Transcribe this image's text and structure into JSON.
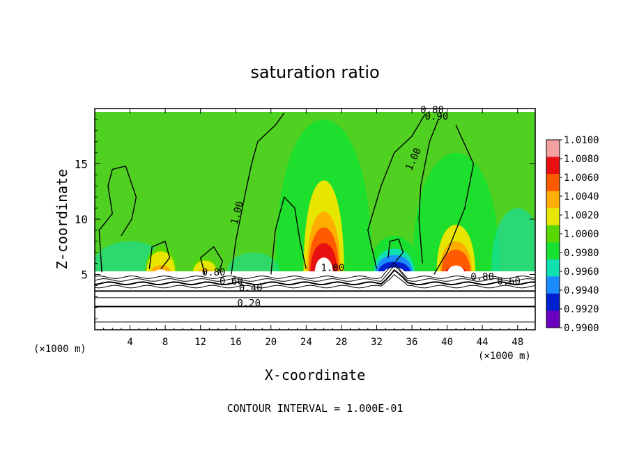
{
  "chart_data": {
    "type": "heatmap",
    "title": "saturation ratio",
    "xlabel": "X-coordinate",
    "ylabel": "Z-coordinate",
    "x_unit_left": "(×1000 m)",
    "x_unit_right": "(×1000 m)",
    "xlim": [
      0,
      50
    ],
    "ylim": [
      0,
      20
    ],
    "x_ticks": [
      4,
      8,
      12,
      16,
      20,
      24,
      28,
      32,
      36,
      40,
      44,
      48
    ],
    "y_ticks": [
      5,
      10,
      15
    ],
    "footer": "CONTOUR INTERVAL = 1.000E-01",
    "colorbar": {
      "levels": [
        "1.0100",
        "1.0080",
        "1.0060",
        "1.0040",
        "1.0020",
        "1.0000",
        "0.9980",
        "0.9960",
        "0.9940",
        "0.9920",
        "0.9900"
      ],
      "colors": [
        "#f2a0a0",
        "#e81010",
        "#ff5a00",
        "#ffae00",
        "#e6e600",
        "#58d800",
        "#18e030",
        "#10e0b0",
        "#1a8cff",
        "#0020d0",
        "#6a00c0"
      ]
    },
    "contour_labels": [
      {
        "text": "0.20",
        "x": 17.5,
        "z": 2.1
      },
      {
        "text": "0.40",
        "x": 17.7,
        "z": 3.5
      },
      {
        "text": "0.60",
        "x": 15.5,
        "z": 4.1
      },
      {
        "text": "0.80",
        "x": 13.5,
        "z": 4.9
      },
      {
        "text": "1.00",
        "x": 16.5,
        "z": 10.5
      },
      {
        "text": "1.00",
        "x": 27.0,
        "z": 5.3
      },
      {
        "text": "1.00",
        "x": 36.5,
        "z": 15.3
      },
      {
        "text": "0.80",
        "x": 44.0,
        "z": 4.5
      },
      {
        "text": "0.60",
        "x": 47.0,
        "z": 4.1
      },
      {
        "text": "0.80",
        "x": 38.3,
        "z": 19.6
      },
      {
        "text": "0.90",
        "x": 38.8,
        "z": 19.0
      }
    ],
    "features": [
      {
        "x": 26,
        "z_base": 5,
        "height": 8.5,
        "half_width": 2.3,
        "peak": 1.009
      },
      {
        "x": 41,
        "z_base": 5,
        "height": 4.5,
        "half_width": 2.2,
        "peak": 1.008
      },
      {
        "x": 34,
        "z_base": 5,
        "height": 3.5,
        "half_width": 2.8,
        "peak": 0.991
      },
      {
        "x": 7.5,
        "z_base": 5,
        "height": 2.5,
        "half_width": 1.8,
        "peak": 1.0045
      },
      {
        "x": 12.5,
        "z_base": 5,
        "height": 1.5,
        "half_width": 1.5,
        "peak": 1.0045
      }
    ]
  }
}
